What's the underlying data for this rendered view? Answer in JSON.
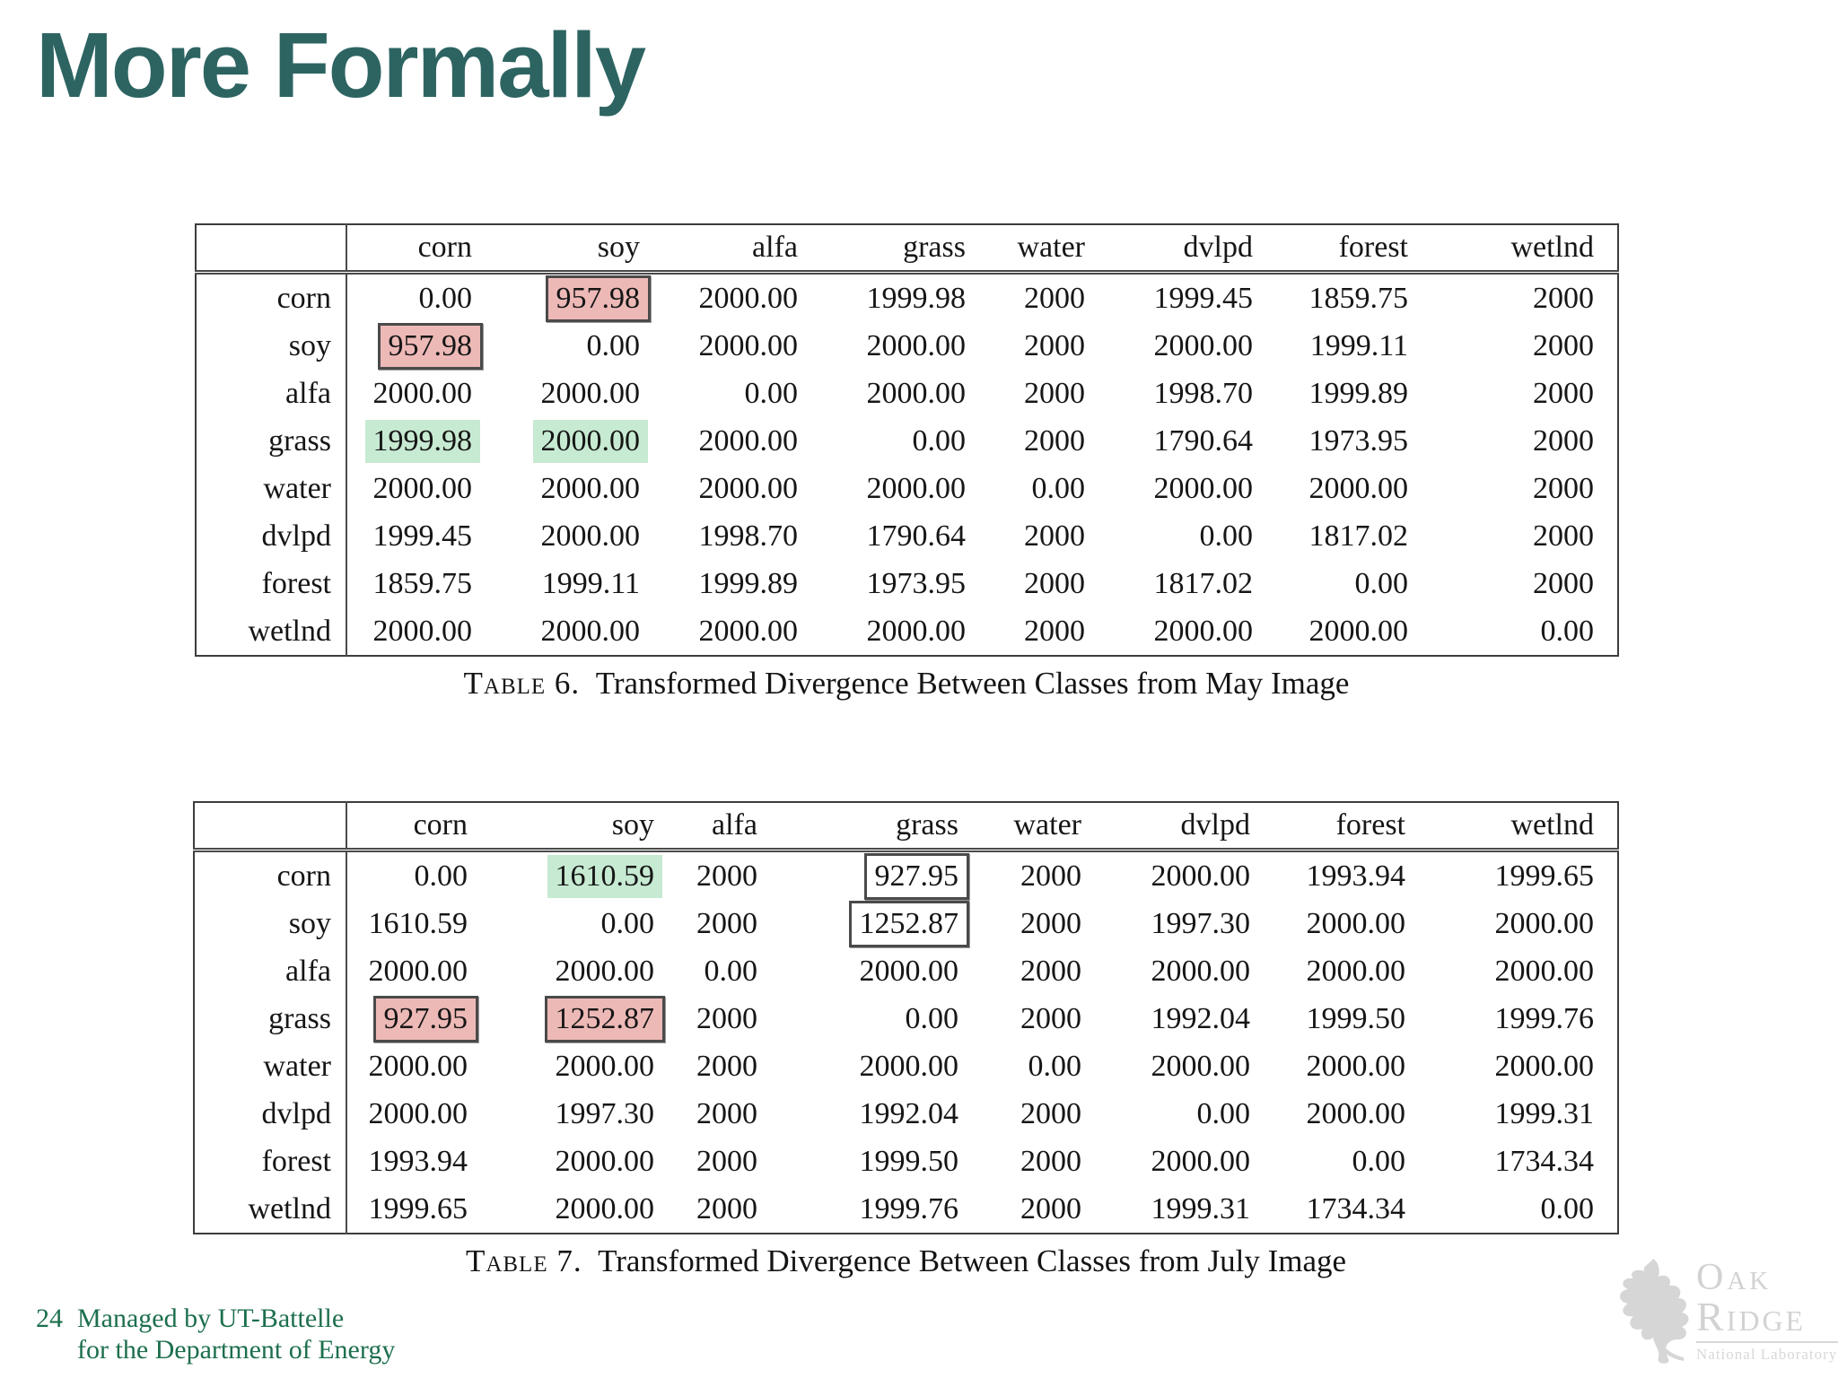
{
  "slide": {
    "title": "More Formally",
    "page_number": "24",
    "footer_line1": "Managed by UT-Battelle",
    "footer_line2": "for the Department of Energy",
    "logo": {
      "word1": "Oak",
      "word2": "Ridge",
      "subtitle": "National Laboratory"
    }
  },
  "colors": {
    "title_teal": "#2d6462",
    "footer_green": "#1d6f4d",
    "highlight_pink": "#edb9b7",
    "highlight_green": "#c7ead2",
    "box_border": "#4a4a4a",
    "logo_gray": "#d2d2d2"
  },
  "chart_data": [
    {
      "type": "table",
      "caption_label": "Table 6.",
      "caption_text": "Transformed Divergence Between Classes from May Image",
      "columns": [
        "corn",
        "soy",
        "alfa",
        "grass",
        "water",
        "dvlpd",
        "forest",
        "wetlnd"
      ],
      "rows": [
        "corn",
        "soy",
        "alfa",
        "grass",
        "water",
        "dvlpd",
        "forest",
        "wetlnd"
      ],
      "values": [
        [
          "0.00",
          "957.98",
          "2000.00",
          "1999.98",
          "2000",
          "1999.45",
          "1859.75",
          "2000"
        ],
        [
          "957.98",
          "0.00",
          "2000.00",
          "2000.00",
          "2000",
          "2000.00",
          "1999.11",
          "2000"
        ],
        [
          "2000.00",
          "2000.00",
          "0.00",
          "2000.00",
          "2000",
          "1998.70",
          "1999.89",
          "2000"
        ],
        [
          "1999.98",
          "2000.00",
          "2000.00",
          "0.00",
          "2000",
          "1790.64",
          "1973.95",
          "2000"
        ],
        [
          "2000.00",
          "2000.00",
          "2000.00",
          "2000.00",
          "0.00",
          "2000.00",
          "2000.00",
          "2000"
        ],
        [
          "1999.45",
          "2000.00",
          "1998.70",
          "1790.64",
          "2000",
          "0.00",
          "1817.02",
          "2000"
        ],
        [
          "1859.75",
          "1999.11",
          "1999.89",
          "1973.95",
          "2000",
          "1817.02",
          "0.00",
          "2000"
        ],
        [
          "2000.00",
          "2000.00",
          "2000.00",
          "2000.00",
          "2000",
          "2000.00",
          "2000.00",
          "0.00"
        ]
      ],
      "highlights": {
        "0,1": "pink-box",
        "1,0": "pink-box",
        "3,0": "green",
        "3,1": "green"
      }
    },
    {
      "type": "table",
      "caption_label": "Table 7.",
      "caption_text": "Transformed Divergence Between Classes from July Image",
      "columns": [
        "corn",
        "soy",
        "alfa",
        "grass",
        "water",
        "dvlpd",
        "forest",
        "wetlnd"
      ],
      "rows": [
        "corn",
        "soy",
        "alfa",
        "grass",
        "water",
        "dvlpd",
        "forest",
        "wetlnd"
      ],
      "values": [
        [
          "0.00",
          "1610.59",
          "2000",
          "927.95",
          "2000",
          "2000.00",
          "1993.94",
          "1999.65"
        ],
        [
          "1610.59",
          "0.00",
          "2000",
          "1252.87",
          "2000",
          "1997.30",
          "2000.00",
          "2000.00"
        ],
        [
          "2000.00",
          "2000.00",
          "0.00",
          "2000.00",
          "2000",
          "2000.00",
          "2000.00",
          "2000.00"
        ],
        [
          "927.95",
          "1252.87",
          "2000",
          "0.00",
          "2000",
          "1992.04",
          "1999.50",
          "1999.76"
        ],
        [
          "2000.00",
          "2000.00",
          "2000",
          "2000.00",
          "0.00",
          "2000.00",
          "2000.00",
          "2000.00"
        ],
        [
          "2000.00",
          "1997.30",
          "2000",
          "1992.04",
          "2000",
          "0.00",
          "2000.00",
          "1999.31"
        ],
        [
          "1993.94",
          "2000.00",
          "2000",
          "1999.50",
          "2000",
          "2000.00",
          "0.00",
          "1734.34"
        ],
        [
          "1999.65",
          "2000.00",
          "2000",
          "1999.76",
          "2000",
          "1999.31",
          "1734.34",
          "0.00"
        ]
      ],
      "highlights": {
        "0,1": "green",
        "0,3": "box",
        "1,3": "box",
        "3,0": "pink-box",
        "3,1": "pink-box"
      }
    }
  ]
}
